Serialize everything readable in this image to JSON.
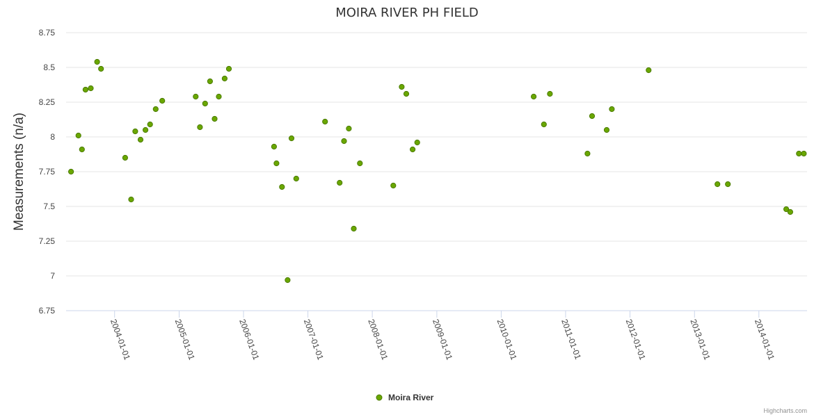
{
  "chart_data": {
    "type": "scatter",
    "title": "MOIRA RIVER PH FIELD",
    "xlabel": "",
    "ylabel": "Measurements (n/a)",
    "ylim": [
      6.75,
      8.75
    ],
    "y_ticks": [
      "6.75",
      "7",
      "7.25",
      "7.5",
      "7.75",
      "8",
      "8.25",
      "8.5",
      "8.75"
    ],
    "x_range": [
      "2003-04-01",
      "2014-10-01"
    ],
    "x_ticks": [
      "2004-01-01",
      "2005-01-01",
      "2006-01-01",
      "2007-01-01",
      "2008-01-01",
      "2009-01-01",
      "2010-01-01",
      "2011-01-01",
      "2012-01-01",
      "2013-01-01",
      "2014-01-01"
    ],
    "grid": "horizontal",
    "legend_position": "bottom-center",
    "series": [
      {
        "name": "Moira River",
        "color": "#6aa700",
        "points": [
          [
            "2003-04-29",
            7.75
          ],
          [
            "2003-06-10",
            8.01
          ],
          [
            "2003-06-30",
            7.91
          ],
          [
            "2003-07-20",
            8.34
          ],
          [
            "2003-08-19",
            8.35
          ],
          [
            "2003-09-24",
            8.54
          ],
          [
            "2003-10-16",
            8.49
          ],
          [
            "2004-03-01",
            7.85
          ],
          [
            "2004-04-04",
            7.55
          ],
          [
            "2004-04-27",
            8.04
          ],
          [
            "2004-05-27",
            7.98
          ],
          [
            "2004-06-24",
            8.05
          ],
          [
            "2004-07-20",
            8.09
          ],
          [
            "2004-08-21",
            8.2
          ],
          [
            "2004-09-27",
            8.26
          ],
          [
            "2005-04-05",
            8.29
          ],
          [
            "2005-04-29",
            8.07
          ],
          [
            "2005-05-28",
            8.24
          ],
          [
            "2005-06-25",
            8.4
          ],
          [
            "2005-07-21",
            8.13
          ],
          [
            "2005-08-14",
            8.29
          ],
          [
            "2005-09-16",
            8.42
          ],
          [
            "2005-10-10",
            8.49
          ],
          [
            "2006-06-23",
            7.93
          ],
          [
            "2006-07-07",
            7.81
          ],
          [
            "2006-08-07",
            7.64
          ],
          [
            "2006-09-08",
            6.97
          ],
          [
            "2006-09-30",
            7.99
          ],
          [
            "2006-10-27",
            7.7
          ],
          [
            "2007-04-08",
            8.11
          ],
          [
            "2007-06-30",
            7.67
          ],
          [
            "2007-07-25",
            7.97
          ],
          [
            "2007-08-21",
            8.06
          ],
          [
            "2007-09-18",
            7.34
          ],
          [
            "2007-10-23",
            7.81
          ],
          [
            "2008-04-29",
            7.65
          ],
          [
            "2008-06-16",
            8.36
          ],
          [
            "2008-07-12",
            8.31
          ],
          [
            "2008-08-17",
            7.91
          ],
          [
            "2008-09-12",
            7.96
          ],
          [
            "2010-07-04",
            8.29
          ],
          [
            "2010-08-31",
            8.09
          ],
          [
            "2010-10-04",
            8.31
          ],
          [
            "2011-05-05",
            7.88
          ],
          [
            "2011-05-31",
            8.15
          ],
          [
            "2011-08-22",
            8.05
          ],
          [
            "2011-09-20",
            8.2
          ],
          [
            "2012-04-16",
            8.48
          ],
          [
            "2013-05-11",
            7.66
          ],
          [
            "2013-07-09",
            7.66
          ],
          [
            "2014-06-05",
            7.48
          ],
          [
            "2014-06-28",
            7.46
          ],
          [
            "2014-08-16",
            7.88
          ],
          [
            "2014-09-13",
            7.88
          ]
        ]
      }
    ],
    "credits": "Highcharts.com"
  }
}
